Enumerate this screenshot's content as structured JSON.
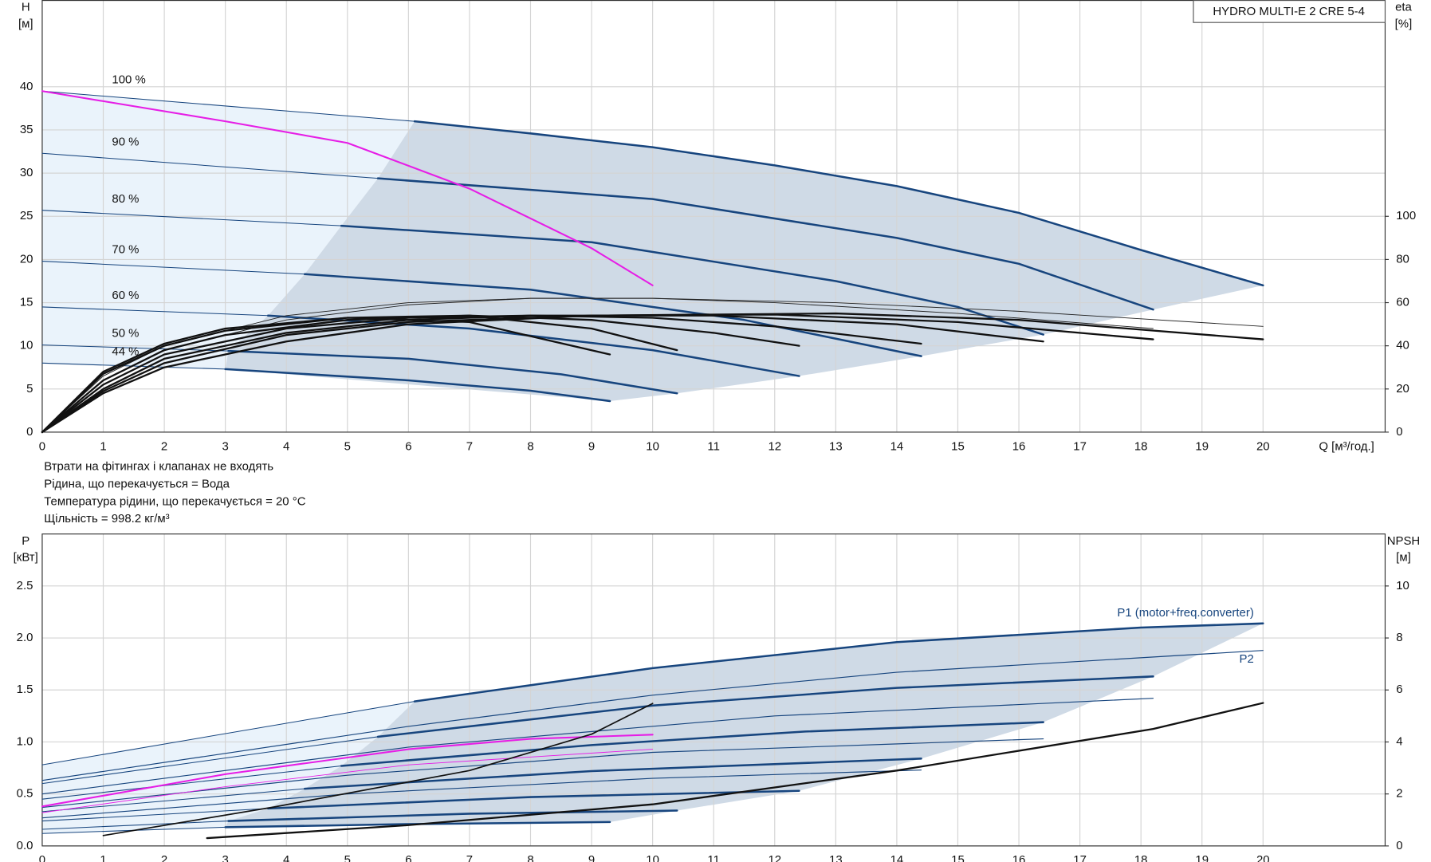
{
  "notes": [
    "Втрати на фітингах і клапанах не входять",
    "Рідина, що перекачується = Вода",
    "Температура рідини, що перекачується = 20 °C",
    "Щільність = 998.2 кг/м³"
  ],
  "chart_data": [
    {
      "type": "line",
      "title": "HYDRO MULTI-E 2 CRE 5-4",
      "xlabel": "Q [м³/год.]",
      "ylabel": "H",
      "ylabel_unit": "[м]",
      "y2label": "eta",
      "y2label_unit": "[%]",
      "xlim": [
        0,
        22
      ],
      "ylim": [
        0,
        50
      ],
      "y2lim": [
        0,
        200
      ],
      "xticks": [
        0,
        1,
        2,
        3,
        4,
        5,
        6,
        7,
        8,
        9,
        10,
        11,
        12,
        13,
        14,
        15,
        16,
        17,
        18,
        19,
        20
      ],
      "yticks": [
        0,
        5,
        10,
        15,
        20,
        25,
        30,
        35,
        40
      ],
      "y2ticks": [
        0,
        20,
        40,
        60,
        80,
        100
      ],
      "grid": true,
      "region_colors": [
        "#eaf3fb",
        "#cfdae6"
      ],
      "speed_curves": [
        {
          "name": "100 %",
          "color": "#17457e",
          "thin_x": [
            0,
            6.1
          ],
          "thin_values": [
            39.5,
            36
          ],
          "x": [
            6.1,
            8,
            10,
            12,
            14,
            16,
            18,
            20
          ],
          "values": [
            36,
            34.6,
            33,
            30.9,
            28.5,
            25.4,
            21.1,
            17
          ]
        },
        {
          "name": "90 %",
          "color": "#17457e",
          "thin_x": [
            0,
            5.5
          ],
          "thin_values": [
            32.3,
            29.4
          ],
          "x": [
            5.5,
            10,
            14,
            16,
            18.2
          ],
          "values": [
            29.4,
            27,
            22.5,
            19.5,
            14.2
          ]
        },
        {
          "name": "80 %",
          "color": "#17457e",
          "thin_x": [
            0,
            4.9
          ],
          "thin_values": [
            25.7,
            23.9
          ],
          "x": [
            4.9,
            9,
            13,
            15,
            16.4
          ],
          "values": [
            23.9,
            22,
            17.5,
            14.5,
            11.3
          ]
        },
        {
          "name": "70 %",
          "color": "#17457e",
          "thin_x": [
            0,
            4.3
          ],
          "thin_values": [
            19.8,
            18.3
          ],
          "x": [
            4.3,
            8,
            11.5,
            14.4
          ],
          "values": [
            18.3,
            16.5,
            13,
            8.8
          ]
        },
        {
          "name": "60 %",
          "color": "#17457e",
          "thin_x": [
            0,
            3.7
          ],
          "thin_values": [
            14.5,
            13.5
          ],
          "x": [
            3.7,
            7,
            10,
            12.4
          ],
          "values": [
            13.5,
            12,
            9.5,
            6.5
          ]
        },
        {
          "name": "50 %",
          "color": "#17457e",
          "thin_x": [
            0,
            3.05
          ],
          "thin_values": [
            10.1,
            9.4
          ],
          "x": [
            3.05,
            6,
            8.5,
            10.4
          ],
          "values": [
            9.4,
            8.5,
            6.7,
            4.5
          ]
        },
        {
          "name": "44 %",
          "color": "#17457e",
          "thin_x": [
            0,
            3
          ],
          "thin_values": [
            8,
            7.3
          ],
          "x": [
            3,
            6,
            8,
            9.3
          ],
          "values": [
            7.3,
            6,
            4.8,
            3.6
          ]
        }
      ],
      "series": [
        {
          "color": "#222222",
          "width": 0.8,
          "axis": "y2",
          "x": [
            0,
            1,
            2,
            4,
            6,
            8,
            10,
            13,
            16,
            20
          ],
          "values": [
            0,
            24,
            38,
            52,
            59,
            62,
            62,
            60,
            56,
            49
          ]
        },
        {
          "color": "#222222",
          "width": 0.8,
          "axis": "y2",
          "x": [
            0,
            1,
            2,
            4,
            6,
            8,
            10,
            12,
            15,
            18.2
          ],
          "values": [
            0,
            26,
            40,
            54,
            60,
            62,
            62,
            60,
            55,
            48
          ]
        },
        {
          "color": "#111111",
          "width": 2,
          "axis": "y2",
          "x": [
            0,
            1,
            2,
            4,
            6,
            9,
            13,
            16,
            20
          ],
          "values": [
            0,
            18,
            30,
            42,
            50,
            54,
            55,
            52,
            43
          ]
        },
        {
          "color": "#111111",
          "width": 2,
          "axis": "y2",
          "x": [
            0,
            1,
            2,
            4,
            6,
            9,
            12,
            15,
            18.2
          ],
          "values": [
            0,
            19,
            32,
            45,
            51,
            54,
            54.5,
            51,
            43
          ]
        },
        {
          "color": "#111111",
          "width": 2,
          "axis": "y2",
          "x": [
            0,
            1,
            2,
            4,
            6,
            8,
            11,
            14,
            16.4
          ],
          "values": [
            0,
            20,
            34,
            46,
            52,
            54,
            54,
            50,
            42
          ]
        },
        {
          "color": "#111111",
          "width": 2,
          "axis": "y2",
          "x": [
            0,
            1,
            2,
            4,
            6,
            8,
            10,
            12,
            14.4
          ],
          "values": [
            0,
            22,
            36,
            48,
            53,
            54,
            53,
            49,
            41
          ]
        },
        {
          "color": "#111111",
          "width": 2,
          "axis": "y2",
          "x": [
            0,
            1,
            2,
            3,
            5,
            7,
            9,
            11,
            12.4
          ],
          "values": [
            0,
            24,
            38,
            45,
            52,
            54,
            52,
            46,
            40
          ]
        },
        {
          "color": "#111111",
          "width": 2,
          "axis": "y2",
          "x": [
            0,
            1,
            2,
            3,
            5,
            7,
            9,
            10.4
          ],
          "values": [
            0,
            27,
            40,
            47,
            53,
            54,
            48,
            38
          ]
        },
        {
          "color": "#111111",
          "width": 2,
          "axis": "y2",
          "x": [
            0,
            1,
            2,
            3,
            5,
            7,
            9.3
          ],
          "values": [
            0,
            28,
            41,
            48,
            53,
            51,
            36
          ]
        },
        {
          "color": "#e61ee6",
          "width": 1.8,
          "axis": "y",
          "x": [
            0,
            3,
            5,
            7,
            9,
            10
          ],
          "values": [
            39.5,
            36,
            33.5,
            28.2,
            21.3,
            17
          ]
        }
      ]
    },
    {
      "type": "line",
      "ylabel": "P",
      "ylabel_unit": "[кВт]",
      "y2label": "NPSH",
      "y2label_unit": "[м]",
      "xlim": [
        0,
        22
      ],
      "ylim": [
        0,
        3
      ],
      "y2lim": [
        0,
        12
      ],
      "xticks": [
        0,
        1,
        2,
        3,
        4,
        5,
        6,
        7,
        8,
        9,
        10,
        11,
        12,
        13,
        14,
        15,
        16,
        17,
        18,
        19,
        20
      ],
      "yticks": [
        {
          "value": 0,
          "label": "0.0"
        },
        0.5,
        {
          "value": 1,
          "label": "1.0"
        },
        1.5,
        {
          "value": 2,
          "label": "2.0"
        },
        2.5
      ],
      "y2ticks": [
        0,
        2,
        4,
        6,
        8,
        10
      ],
      "grid": true,
      "region_colors": [
        "#eaf3fb",
        "#cfdae6"
      ],
      "speed_curves": [
        {
          "color": "#17457e",
          "thin_x": [
            0,
            6.1
          ],
          "thin_values": [
            0.78,
            1.39
          ],
          "x": [
            6.1,
            10,
            14,
            18,
            20
          ],
          "values": [
            1.39,
            1.71,
            1.96,
            2.1,
            2.14
          ]
        },
        {
          "color": "#17457e",
          "thin_x": [
            0,
            5.5
          ],
          "thin_values": [
            0.6,
            1.05
          ],
          "x": [
            5.5,
            10,
            14,
            18.2
          ],
          "values": [
            1.05,
            1.35,
            1.52,
            1.63
          ]
        },
        {
          "color": "#17457e",
          "thin_x": [
            0,
            4.9
          ],
          "thin_values": [
            0.45,
            0.77
          ],
          "x": [
            4.9,
            9,
            12.5,
            16.4
          ],
          "values": [
            0.77,
            0.97,
            1.1,
            1.19
          ]
        },
        {
          "color": "#17457e",
          "thin_x": [
            0,
            4.3
          ],
          "thin_values": [
            0.33,
            0.55
          ],
          "x": [
            4.3,
            9,
            14.4
          ],
          "values": [
            0.55,
            0.72,
            0.84
          ]
        },
        {
          "color": "#17457e",
          "thin_x": [
            0,
            3.7
          ],
          "thin_values": [
            0.24,
            0.36
          ],
          "x": [
            3.7,
            8,
            12.4
          ],
          "values": [
            0.36,
            0.47,
            0.53
          ]
        },
        {
          "color": "#17457e",
          "thin_x": [
            0,
            3.05
          ],
          "thin_values": [
            0.16,
            0.24
          ],
          "x": [
            3.05,
            7,
            10.4
          ],
          "values": [
            0.24,
            0.31,
            0.34
          ]
        },
        {
          "color": "#17457e",
          "thin_x": [
            0,
            3
          ],
          "thin_values": [
            0.12,
            0.18
          ],
          "x": [
            3,
            6,
            9.3
          ],
          "values": [
            0.18,
            0.21,
            0.23
          ]
        }
      ],
      "series": [
        {
          "name": "P1 (motor+freq.converter)",
          "label_side": "above",
          "color": "#17457e",
          "width": 0,
          "axis": "y",
          "x": [
            20
          ],
          "values": [
            2.14
          ]
        },
        {
          "name": "P2",
          "label_side": "below",
          "color": "#17457e",
          "width": 1,
          "axis": "y",
          "x": [
            0,
            6,
            10,
            14,
            20
          ],
          "values": [
            0.63,
            1.15,
            1.45,
            1.67,
            1.88
          ]
        },
        {
          "color": "#17457e",
          "width": 1,
          "axis": "y",
          "x": [
            0,
            6,
            12,
            18.2
          ],
          "values": [
            0.5,
            0.95,
            1.25,
            1.42
          ]
        },
        {
          "color": "#17457e",
          "width": 1,
          "axis": "y",
          "x": [
            0,
            5,
            10,
            16.4
          ],
          "values": [
            0.37,
            0.68,
            0.9,
            1.03
          ]
        },
        {
          "color": "#17457e",
          "width": 1,
          "axis": "y",
          "x": [
            0,
            5,
            10,
            14.4
          ],
          "values": [
            0.27,
            0.5,
            0.65,
            0.73
          ]
        },
        {
          "color": "#e61ee6",
          "width": 1.8,
          "axis": "y",
          "x": [
            0,
            3,
            6,
            8,
            10
          ],
          "values": [
            0.38,
            0.69,
            0.93,
            1.03,
            1.07
          ]
        },
        {
          "color": "#e61ee6",
          "width": 0.8,
          "axis": "y",
          "x": [
            0,
            3,
            6,
            10
          ],
          "values": [
            0.32,
            0.57,
            0.78,
            0.93
          ]
        },
        {
          "color": "#111111",
          "width": 2,
          "axis": "y2",
          "x": [
            2.7,
            6,
            10,
            14,
            18.2,
            20
          ],
          "values": [
            0.3,
            0.8,
            1.6,
            2.9,
            4.5,
            5.5
          ]
        },
        {
          "color": "#111111",
          "width": 1.5,
          "axis": "y2",
          "x": [
            1,
            3.8,
            7,
            9,
            10
          ],
          "values": [
            0.4,
            1.5,
            2.9,
            4.3,
            5.48
          ]
        }
      ]
    }
  ]
}
